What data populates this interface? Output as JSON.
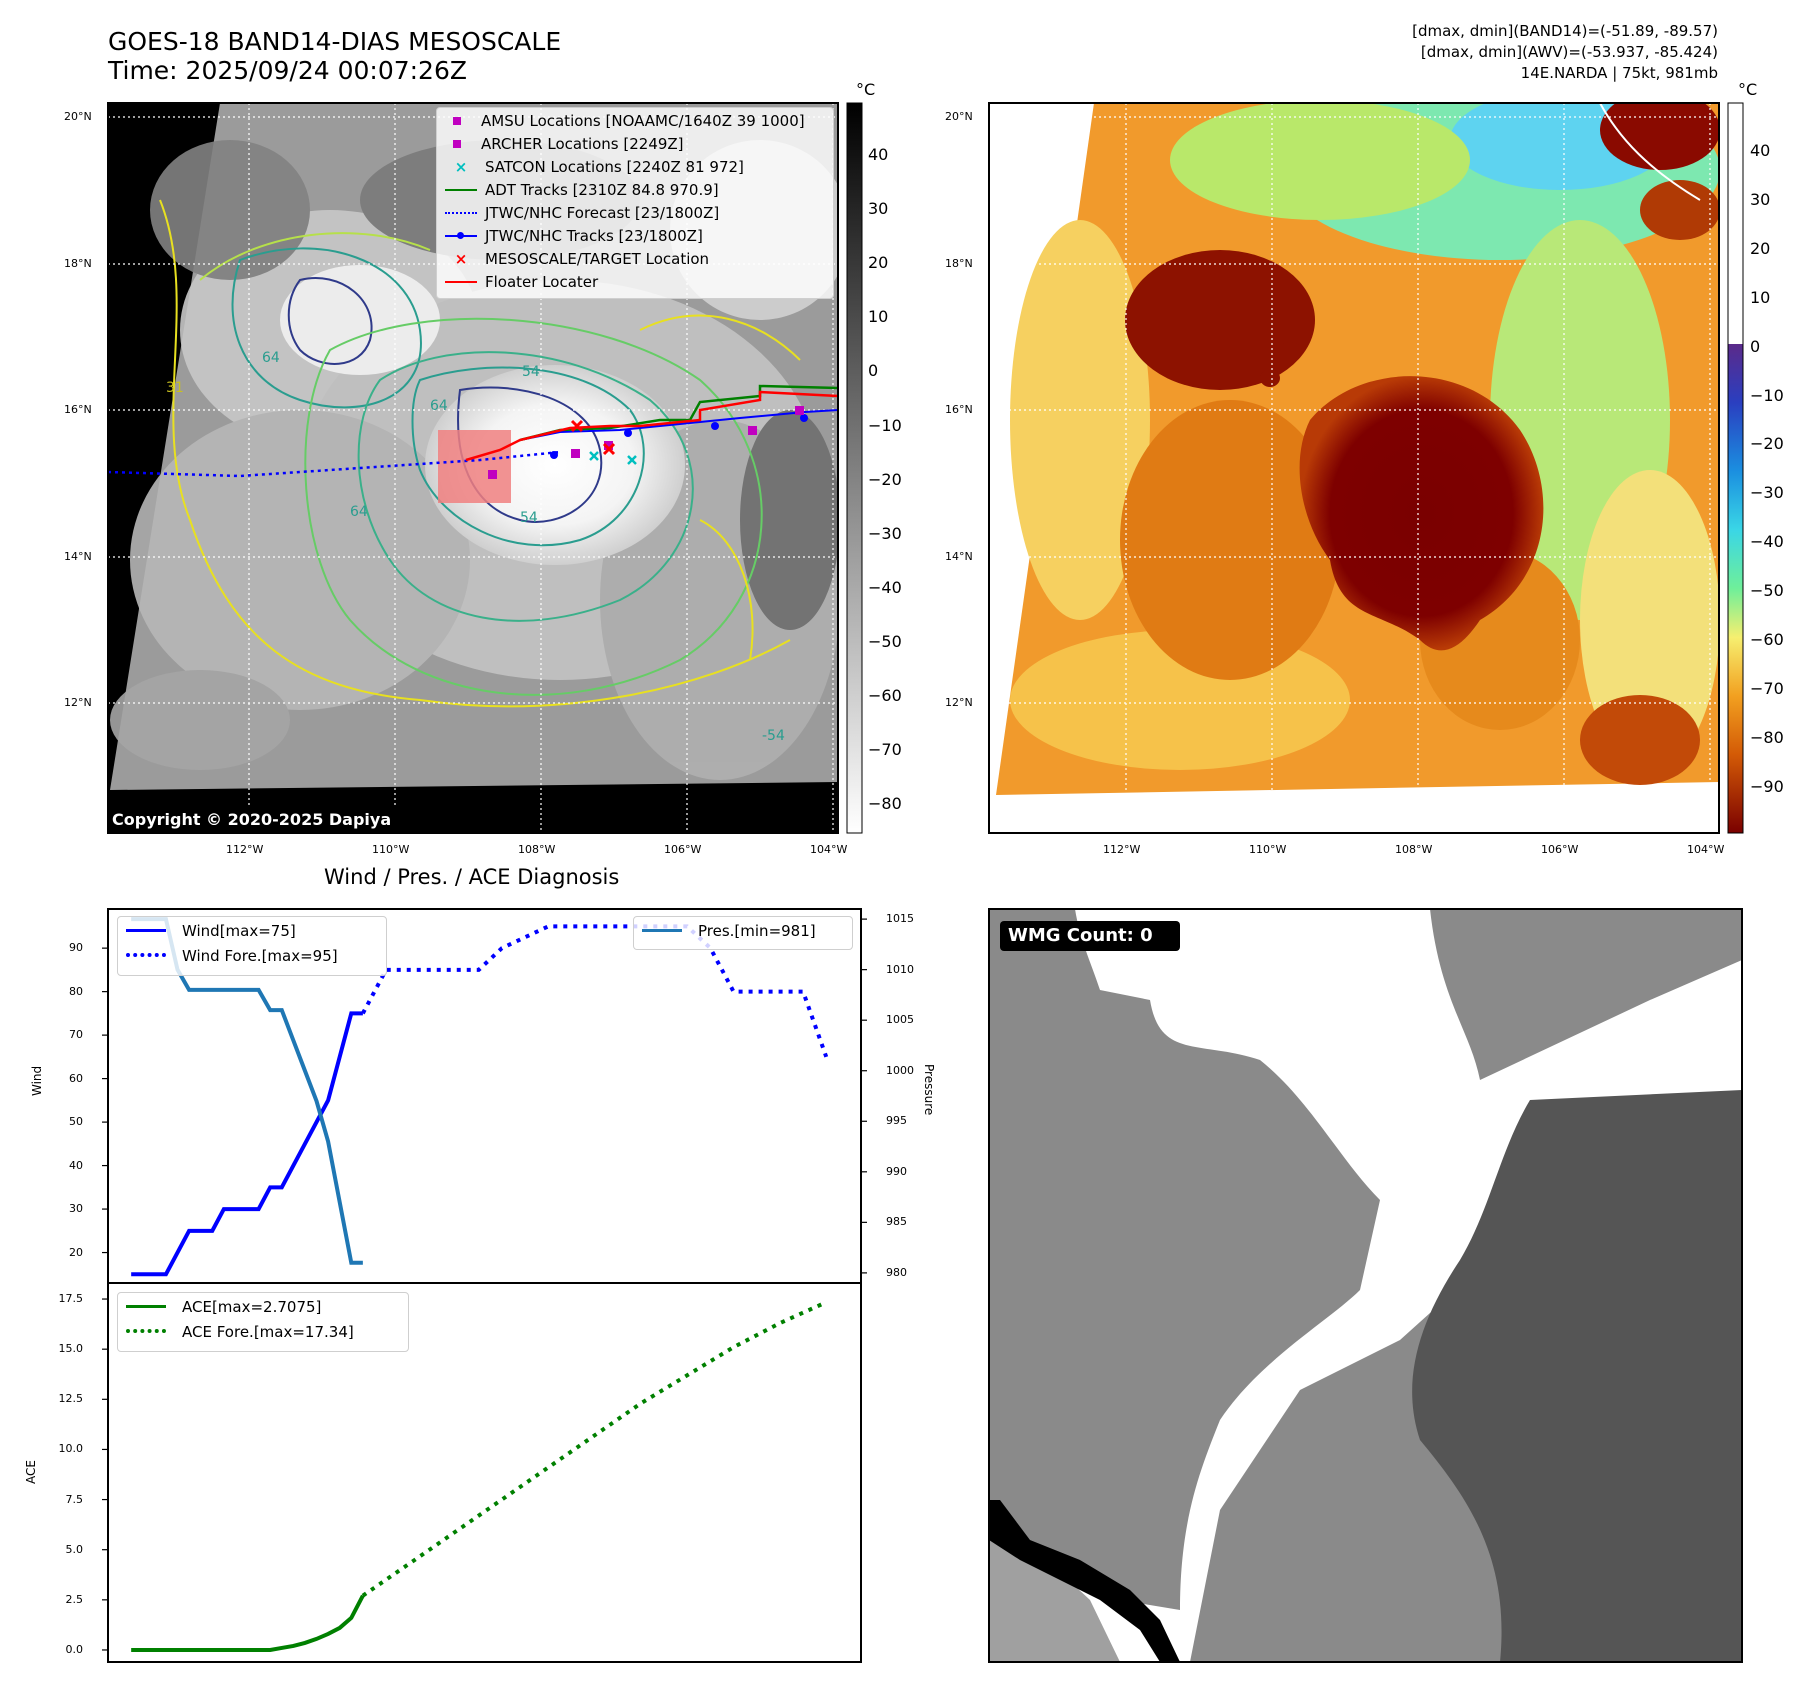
{
  "header": {
    "title_line1": "GOES-18 BAND14-DIAS MESOSCALE",
    "title_line2": "Time: 2025/09/24 00:07:26Z"
  },
  "info": {
    "line1": "[dmax, dmin](BAND14)=(-51.89, -89.57)",
    "line2": "[dmax, dmin](AWV)=(-53.937, -85.424)",
    "line3": "14E.NARDA | 75kt, 981mb"
  },
  "map": {
    "lat_labels": [
      "20°N",
      "18°N",
      "16°N",
      "14°N",
      "12°N"
    ],
    "lon_labels": [
      "112°W",
      "110°W",
      "108°W",
      "106°W",
      "104°W"
    ],
    "copyright": "Copyright © 2020-2025 Dapiya",
    "contour_labels": [
      "64",
      "64",
      "54",
      "64",
      "54",
      "-54",
      "31"
    ],
    "legend": [
      {
        "label": "AMSU Locations [NOAAMC/1640Z 39 1000]",
        "marker": "square",
        "color": "#c000c0"
      },
      {
        "label": "ARCHER Locations [2249Z]",
        "marker": "square",
        "color": "#c000c0"
      },
      {
        "label": "SATCON Locations [2240Z 81 972]",
        "marker": "x",
        "color": "#00bfbf"
      },
      {
        "label": "ADT Tracks [2310Z 84.8 970.9]",
        "marker": "line",
        "color": "#008000"
      },
      {
        "label": "JTWC/NHC Forecast [23/1800Z]",
        "marker": "dotted",
        "color": "#0000ff"
      },
      {
        "label": "JTWC/NHC Tracks [23/1800Z]",
        "marker": "line-dot",
        "color": "#0000ff"
      },
      {
        "label": "MESOSCALE/TARGET Location",
        "marker": "x",
        "color": "#ff0000"
      },
      {
        "label": "Floater Locater",
        "marker": "line",
        "color": "#ff0000"
      }
    ]
  },
  "colorbar_gray": {
    "unit": "°C",
    "ticks": [
      "40",
      "30",
      "20",
      "10",
      "0",
      "−10",
      "−20",
      "−30",
      "−40",
      "−50",
      "−60",
      "−70",
      "−80"
    ]
  },
  "colorbar_awv": {
    "unit": "°C",
    "ticks": [
      "40",
      "30",
      "20",
      "10",
      "0",
      "−10",
      "−20",
      "−30",
      "−40",
      "−50",
      "−60",
      "−70",
      "−80",
      "−90"
    ]
  },
  "wmg": {
    "label": "WMG Count: 0"
  },
  "chart_data": [
    {
      "type": "line",
      "title": "Wind / Pres. / ACE Diagnosis",
      "ylabel": "Wind",
      "ylabel_right": "Pressure",
      "ylim": [
        13,
        99
      ],
      "ylim_right": [
        979,
        1016
      ],
      "yticks": [
        20,
        30,
        40,
        50,
        60,
        70,
        80,
        90
      ],
      "yticks_right": [
        980,
        985,
        990,
        995,
        1000,
        1005,
        1010,
        1015
      ],
      "x": [
        0,
        1,
        2,
        3,
        4,
        5,
        6,
        7,
        8,
        9,
        10,
        11,
        12,
        13,
        14,
        15,
        16,
        17,
        18,
        19,
        20
      ],
      "series": [
        {
          "name": "Wind[max=75]",
          "axis": "left",
          "color": "#0000ff",
          "style": "solid",
          "x": [
            0,
            1,
            2,
            3,
            4,
            5,
            6,
            7,
            8,
            9,
            10,
            11,
            12,
            13,
            14,
            15,
            16,
            17,
            18,
            19,
            20
          ],
          "values": [
            15,
            15,
            15,
            15,
            20,
            25,
            25,
            25,
            30,
            30,
            30,
            30,
            35,
            35,
            40,
            45,
            50,
            55,
            65,
            75,
            75
          ]
        },
        {
          "name": "Wind Fore.[max=95]",
          "axis": "left",
          "color": "#0000ff",
          "style": "dotted",
          "x": [
            20,
            22,
            30,
            32,
            36,
            38,
            40,
            42,
            44,
            46,
            48,
            50,
            52,
            54,
            56,
            58,
            60
          ],
          "values": [
            75,
            85,
            85,
            90,
            95,
            95,
            95,
            95,
            95,
            95,
            95,
            90,
            80,
            80,
            80,
            80,
            65
          ]
        },
        {
          "name": "Pres.[min=981]",
          "axis": "right",
          "color": "#1f77b4",
          "style": "solid",
          "x": [
            0,
            3,
            4,
            5,
            6,
            7,
            8,
            9,
            10,
            11,
            12,
            13,
            14,
            15,
            16,
            17,
            18,
            19,
            20
          ],
          "values": [
            1015,
            1015,
            1010,
            1008,
            1008,
            1008,
            1008,
            1008,
            1008,
            1008,
            1006,
            1006,
            1003,
            1000,
            997,
            993,
            987,
            981,
            981
          ]
        }
      ]
    },
    {
      "type": "line",
      "ylabel": "ACE",
      "ylim": [
        -0.6,
        18.3
      ],
      "yticks": [
        0.0,
        2.5,
        5.0,
        7.5,
        10.0,
        12.5,
        15.0,
        17.5
      ],
      "series": [
        {
          "name": "ACE[max=2.7075]",
          "color": "#008000",
          "style": "solid",
          "x": [
            0,
            4,
            8,
            11,
            12,
            13,
            14,
            15,
            16,
            17,
            18,
            19,
            20
          ],
          "values": [
            0,
            0,
            0,
            0,
            0.0,
            0.1,
            0.2,
            0.35,
            0.55,
            0.8,
            1.1,
            1.6,
            2.7075
          ]
        },
        {
          "name": "ACE Fore.[max=17.34]",
          "color": "#008000",
          "style": "dotted",
          "x": [
            20,
            24,
            28,
            32,
            36,
            40,
            44,
            48,
            52,
            56,
            60
          ],
          "values": [
            2.7075,
            4.3,
            5.9,
            7.5,
            9.1,
            10.7,
            12.3,
            13.7,
            15.1,
            16.3,
            17.34
          ]
        }
      ]
    }
  ]
}
